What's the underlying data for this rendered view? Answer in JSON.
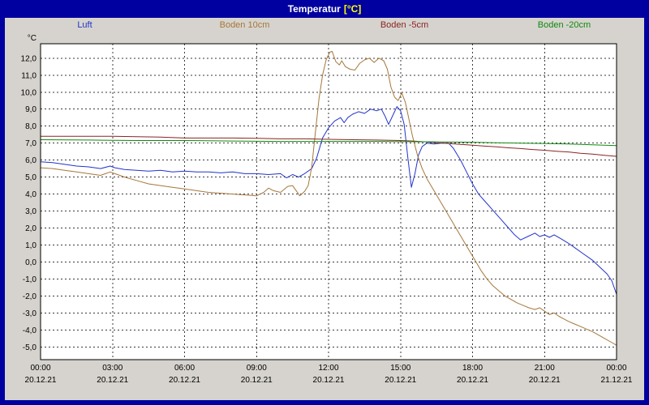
{
  "window": {
    "title_main": "Temperatur",
    "title_unit": "[°C]",
    "frame_color": "#0000a0"
  },
  "legend": {
    "items": [
      {
        "label": "Luft",
        "color": "#2233cc"
      },
      {
        "label": "Boden 10cm",
        "color": "#a5773b"
      },
      {
        "label": "Boden -5cm",
        "color": "#8b2323"
      },
      {
        "label": "Boden -20cm",
        "color": "#0e8a0e"
      }
    ]
  },
  "chart_data": {
    "type": "line",
    "title": "Temperatur [°C]",
    "ylabel": "°C",
    "xlabel": "",
    "xlim": [
      0,
      24
    ],
    "ylim": [
      -5.75,
      12.85
    ],
    "grid": "dashed",
    "grid_color": "#3a3a3a",
    "legend_position": "top",
    "y_ticks": [
      12,
      11,
      10,
      9,
      8,
      7,
      6,
      5,
      4,
      3,
      2,
      1,
      0,
      -1,
      -2,
      -3,
      -4,
      -5
    ],
    "x_ticks": [
      {
        "t": 0,
        "time": "00:00",
        "date": "20.12.21"
      },
      {
        "t": 3,
        "time": "03:00",
        "date": "20.12.21"
      },
      {
        "t": 6,
        "time": "06:00",
        "date": "20.12.21"
      },
      {
        "t": 9,
        "time": "09:00",
        "date": "20.12.21"
      },
      {
        "t": 12,
        "time": "12:00",
        "date": "20.12.21"
      },
      {
        "t": 15,
        "time": "15:00",
        "date": "20.12.21"
      },
      {
        "t": 18,
        "time": "18:00",
        "date": "20.12.21"
      },
      {
        "t": 21,
        "time": "21:00",
        "date": "20.12.21"
      },
      {
        "t": 24,
        "time": "00:00",
        "date": "21.12.21"
      }
    ],
    "series": [
      {
        "name": "Luft",
        "color": "#2233cc",
        "width": 1,
        "points": [
          [
            0,
            5.9
          ],
          [
            0.5,
            5.85
          ],
          [
            1,
            5.75
          ],
          [
            1.5,
            5.65
          ],
          [
            2,
            5.6
          ],
          [
            2.5,
            5.5
          ],
          [
            2.9,
            5.65
          ],
          [
            3.1,
            5.55
          ],
          [
            3.5,
            5.45
          ],
          [
            4,
            5.4
          ],
          [
            4.5,
            5.35
          ],
          [
            5,
            5.4
          ],
          [
            5.5,
            5.3
          ],
          [
            6,
            5.35
          ],
          [
            6.5,
            5.3
          ],
          [
            7,
            5.3
          ],
          [
            7.5,
            5.25
          ],
          [
            8,
            5.3
          ],
          [
            8.5,
            5.2
          ],
          [
            9,
            5.2
          ],
          [
            9.5,
            5.15
          ],
          [
            10,
            5.2
          ],
          [
            10.25,
            4.95
          ],
          [
            10.5,
            5.15
          ],
          [
            10.75,
            5.0
          ],
          [
            11,
            5.2
          ],
          [
            11.3,
            5.5
          ],
          [
            11.5,
            6.1
          ],
          [
            11.75,
            7.3
          ],
          [
            12,
            7.9
          ],
          [
            12.25,
            8.3
          ],
          [
            12.5,
            8.5
          ],
          [
            12.65,
            8.2
          ],
          [
            12.8,
            8.5
          ],
          [
            13,
            8.7
          ],
          [
            13.25,
            8.85
          ],
          [
            13.5,
            8.75
          ],
          [
            13.75,
            9.0
          ],
          [
            14,
            8.9
          ],
          [
            14.2,
            9.0
          ],
          [
            14.35,
            8.6
          ],
          [
            14.5,
            8.1
          ],
          [
            14.7,
            8.7
          ],
          [
            14.85,
            9.15
          ],
          [
            15,
            8.9
          ],
          [
            15.15,
            8.1
          ],
          [
            15.3,
            6.2
          ],
          [
            15.45,
            4.4
          ],
          [
            15.6,
            5.2
          ],
          [
            15.75,
            6.3
          ],
          [
            15.9,
            6.8
          ],
          [
            16.1,
            7.0
          ],
          [
            16.4,
            6.95
          ],
          [
            16.7,
            7.0
          ],
          [
            17,
            7.0
          ],
          [
            17.2,
            6.7
          ],
          [
            17.5,
            6.0
          ],
          [
            17.75,
            5.3
          ],
          [
            18,
            4.6
          ],
          [
            18.25,
            4.0
          ],
          [
            18.5,
            3.6
          ],
          [
            18.75,
            3.2
          ],
          [
            19,
            2.8
          ],
          [
            19.25,
            2.4
          ],
          [
            19.5,
            2.0
          ],
          [
            19.75,
            1.6
          ],
          [
            20,
            1.3
          ],
          [
            20.3,
            1.5
          ],
          [
            20.6,
            1.7
          ],
          [
            20.8,
            1.5
          ],
          [
            21,
            1.6
          ],
          [
            21.2,
            1.45
          ],
          [
            21.4,
            1.6
          ],
          [
            21.7,
            1.35
          ],
          [
            22,
            1.1
          ],
          [
            22.3,
            0.8
          ],
          [
            22.6,
            0.5
          ],
          [
            23,
            0.1
          ],
          [
            23.3,
            -0.3
          ],
          [
            23.6,
            -0.7
          ],
          [
            23.8,
            -1.1
          ],
          [
            24,
            -1.9
          ]
        ]
      },
      {
        "name": "Boden 10cm",
        "color": "#a5773b",
        "width": 1,
        "points": [
          [
            0,
            5.55
          ],
          [
            0.5,
            5.5
          ],
          [
            1,
            5.4
          ],
          [
            1.5,
            5.3
          ],
          [
            2,
            5.2
          ],
          [
            2.5,
            5.1
          ],
          [
            2.9,
            5.3
          ],
          [
            3.1,
            5.2
          ],
          [
            3.5,
            5.0
          ],
          [
            4,
            4.8
          ],
          [
            4.5,
            4.6
          ],
          [
            5,
            4.5
          ],
          [
            5.5,
            4.4
          ],
          [
            6,
            4.3
          ],
          [
            6.5,
            4.2
          ],
          [
            7,
            4.1
          ],
          [
            7.5,
            4.05
          ],
          [
            8,
            4.0
          ],
          [
            8.5,
            3.95
          ],
          [
            9,
            3.9
          ],
          [
            9.3,
            4.1
          ],
          [
            9.5,
            4.35
          ],
          [
            9.7,
            4.2
          ],
          [
            10,
            4.1
          ],
          [
            10.3,
            4.45
          ],
          [
            10.5,
            4.5
          ],
          [
            10.8,
            3.9
          ],
          [
            11,
            4.15
          ],
          [
            11.15,
            4.5
          ],
          [
            11.3,
            5.6
          ],
          [
            11.45,
            7.6
          ],
          [
            11.6,
            9.6
          ],
          [
            11.75,
            11.0
          ],
          [
            11.9,
            11.9
          ],
          [
            12.05,
            12.35
          ],
          [
            12.15,
            12.4
          ],
          [
            12.3,
            11.8
          ],
          [
            12.45,
            11.6
          ],
          [
            12.55,
            11.85
          ],
          [
            12.7,
            11.5
          ],
          [
            12.9,
            11.35
          ],
          [
            13.1,
            11.3
          ],
          [
            13.3,
            11.7
          ],
          [
            13.5,
            11.9
          ],
          [
            13.7,
            12.0
          ],
          [
            13.9,
            11.75
          ],
          [
            14.1,
            12.0
          ],
          [
            14.3,
            11.85
          ],
          [
            14.45,
            11.35
          ],
          [
            14.6,
            10.3
          ],
          [
            14.75,
            9.7
          ],
          [
            14.9,
            9.5
          ],
          [
            15.05,
            9.95
          ],
          [
            15.2,
            9.4
          ],
          [
            15.35,
            8.4
          ],
          [
            15.5,
            7.4
          ],
          [
            15.7,
            6.3
          ],
          [
            15.9,
            5.5
          ],
          [
            16.1,
            4.9
          ],
          [
            16.35,
            4.3
          ],
          [
            16.6,
            3.7
          ],
          [
            16.85,
            3.1
          ],
          [
            17.1,
            2.5
          ],
          [
            17.35,
            1.9
          ],
          [
            17.6,
            1.3
          ],
          [
            17.85,
            0.7
          ],
          [
            18.1,
            0.1
          ],
          [
            18.35,
            -0.5
          ],
          [
            18.6,
            -1.0
          ],
          [
            18.85,
            -1.4
          ],
          [
            19.1,
            -1.7
          ],
          [
            19.35,
            -2.0
          ],
          [
            19.6,
            -2.2
          ],
          [
            19.85,
            -2.4
          ],
          [
            20.1,
            -2.55
          ],
          [
            20.35,
            -2.7
          ],
          [
            20.6,
            -2.8
          ],
          [
            20.8,
            -2.7
          ],
          [
            21,
            -2.9
          ],
          [
            21.2,
            -3.1
          ],
          [
            21.4,
            -3.0
          ],
          [
            21.6,
            -3.2
          ],
          [
            21.8,
            -3.35
          ],
          [
            22,
            -3.5
          ],
          [
            22.25,
            -3.65
          ],
          [
            22.5,
            -3.8
          ],
          [
            22.75,
            -3.95
          ],
          [
            23,
            -4.1
          ],
          [
            23.25,
            -4.3
          ],
          [
            23.5,
            -4.5
          ],
          [
            23.75,
            -4.7
          ],
          [
            24,
            -4.9
          ]
        ]
      },
      {
        "name": "Boden -5cm",
        "color": "#8b2323",
        "width": 1,
        "points": [
          [
            0,
            7.4
          ],
          [
            1,
            7.4
          ],
          [
            2,
            7.4
          ],
          [
            3,
            7.4
          ],
          [
            4,
            7.38
          ],
          [
            5,
            7.35
          ],
          [
            6,
            7.3
          ],
          [
            7,
            7.3
          ],
          [
            8,
            7.3
          ],
          [
            9,
            7.28
          ],
          [
            10,
            7.25
          ],
          [
            11,
            7.25
          ],
          [
            12,
            7.22
          ],
          [
            13,
            7.2
          ],
          [
            14,
            7.18
          ],
          [
            15,
            7.15
          ],
          [
            15.5,
            7.12
          ],
          [
            16,
            7.08
          ],
          [
            16.5,
            7.02
          ],
          [
            17,
            6.98
          ],
          [
            17.5,
            6.92
          ],
          [
            18,
            6.88
          ],
          [
            18.5,
            6.82
          ],
          [
            19,
            6.78
          ],
          [
            19.5,
            6.72
          ],
          [
            20,
            6.68
          ],
          [
            20.5,
            6.62
          ],
          [
            21,
            6.58
          ],
          [
            21.5,
            6.52
          ],
          [
            22,
            6.48
          ],
          [
            22.5,
            6.4
          ],
          [
            23,
            6.35
          ],
          [
            23.5,
            6.28
          ],
          [
            24,
            6.22
          ]
        ]
      },
      {
        "name": "Boden -20cm",
        "color": "#0e8a0e",
        "width": 1,
        "points": [
          [
            0,
            7.2
          ],
          [
            2,
            7.18
          ],
          [
            4,
            7.15
          ],
          [
            6,
            7.15
          ],
          [
            8,
            7.12
          ],
          [
            10,
            7.1
          ],
          [
            12,
            7.1
          ],
          [
            14,
            7.1
          ],
          [
            16,
            7.08
          ],
          [
            18,
            7.05
          ],
          [
            19,
            7.02
          ],
          [
            20,
            7.0
          ],
          [
            21,
            6.98
          ],
          [
            22,
            6.95
          ],
          [
            23,
            6.9
          ],
          [
            24,
            6.85
          ]
        ]
      }
    ]
  }
}
